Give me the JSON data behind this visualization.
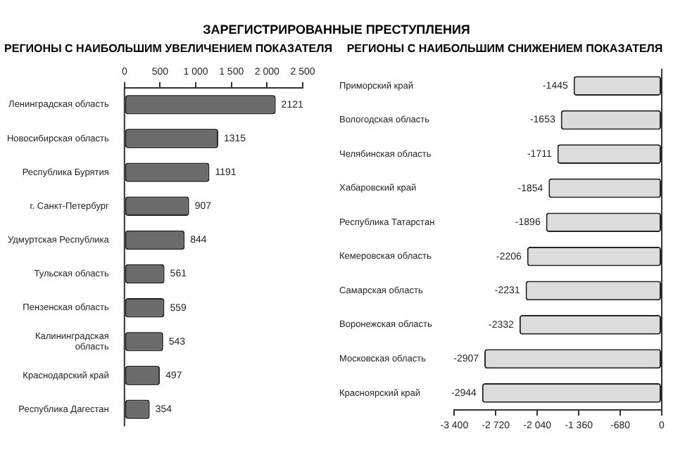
{
  "chart_data": [
    {
      "type": "bar",
      "orientation": "horizontal",
      "title": "ЗАРЕГИСТРИРОВАННЫЕ ПРЕСТУПЛЕНИЯ",
      "subtitle": "РЕГИОНЫ С НАИБОЛЬШИМ УВЕЛИЧЕНИЕМ ПОКАЗАТЕЛЯ",
      "categories": [
        "Ленинградская область",
        "Новосибирская область",
        "Республика Бурятия",
        "г. Санкт-Петербург",
        "Удмуртская Республика",
        "Тульская область",
        "Пензенская область",
        "Калининградская область",
        "Краснодарский край",
        "Республика Дагестан"
      ],
      "values": [
        2121,
        1315,
        1191,
        907,
        844,
        561,
        559,
        543,
        497,
        354
      ],
      "color": "#6b6b6b",
      "xlim": [
        0,
        2500
      ],
      "xticks": [
        0,
        500,
        {
          "value": 1000,
          "label": "1 000"
        },
        {
          "value": 1500,
          "label": "1 500"
        },
        {
          "value": 2000,
          "label": "2 000"
        },
        {
          "value": 2500,
          "label": "2 500"
        }
      ],
      "data_labels": true,
      "grid": false,
      "legend": false
    },
    {
      "type": "bar",
      "orientation": "horizontal",
      "title": "РЕГИОНЫ С НАИБОЛЬШИМ СНИЖЕНИЕМ ПОКАЗАТЕЛЯ",
      "categories": [
        "Приморский край",
        "Вологодская область",
        "Челябинская область",
        "Хабаровский край",
        "Республика Татарстан",
        "Кемеровская область",
        "Самарская область",
        "Воронежская область",
        "Московская область",
        "Красноярский край"
      ],
      "values": [
        -1445,
        -1653,
        -1711,
        -1854,
        -1896,
        -2206,
        -2231,
        -2332,
        -2907,
        -2944
      ],
      "color": "#dcdcdc",
      "xlim": [
        -3400,
        0
      ],
      "xticks": [
        {
          "value": -3400,
          "label": "-3 400"
        },
        {
          "value": -2720,
          "label": "-2 720"
        },
        {
          "value": -2040,
          "label": "-2 040"
        },
        {
          "value": -1360,
          "label": "-1 360"
        },
        -680,
        0
      ],
      "data_labels": true,
      "grid": false,
      "legend": false
    }
  ]
}
